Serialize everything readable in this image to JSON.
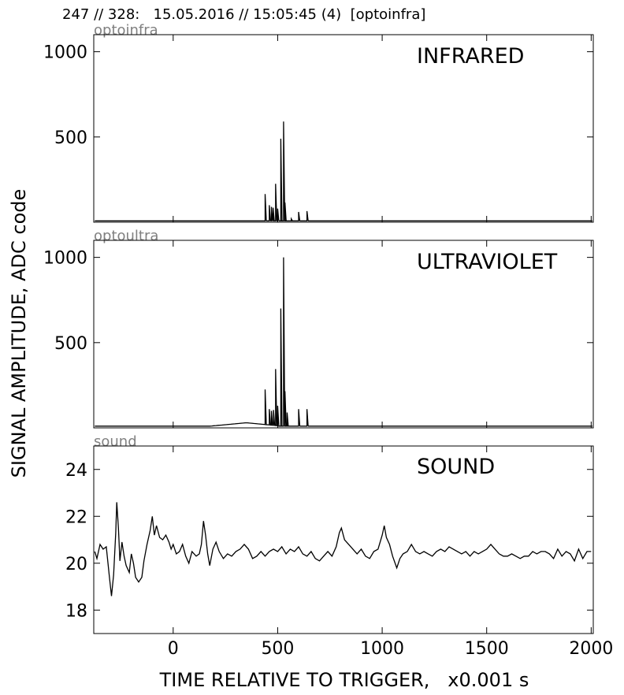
{
  "header": "247 // 328:   15.05.2016 // 15:05:45 (4)  [optoinfra]",
  "ylabel": "SIGNAL AMPLITUDE,  ADC code",
  "xlabel": "TIME RELATIVE TO TRIGGER,   x0.001 s",
  "chart_data": [
    {
      "type": "line",
      "title": "optoinfra",
      "label": "INFRARED",
      "xlim": [
        -380,
        2010
      ],
      "ylim": [
        0,
        1100
      ],
      "yticks": [
        500,
        1000
      ],
      "baseline": 8,
      "spikes": [
        [
          440,
          165
        ],
        [
          460,
          100
        ],
        [
          470,
          90
        ],
        [
          478,
          85
        ],
        [
          490,
          225
        ],
        [
          500,
          80
        ],
        [
          515,
          490
        ],
        [
          528,
          590
        ],
        [
          535,
          115
        ],
        [
          565,
          20
        ],
        [
          600,
          60
        ],
        [
          640,
          65
        ]
      ]
    },
    {
      "type": "line",
      "title": "optoultra",
      "label": "ULTRAVIOLET",
      "xlim": [
        -380,
        2010
      ],
      "ylim": [
        0,
        1100
      ],
      "yticks": [
        500,
        1000
      ],
      "baseline": 10,
      "bump": {
        "x": [
          150,
          500
        ],
        "peak": 30,
        "center": 350
      },
      "spikes": [
        [
          440,
          225
        ],
        [
          460,
          110
        ],
        [
          470,
          100
        ],
        [
          480,
          105
        ],
        [
          490,
          345
        ],
        [
          500,
          130
        ],
        [
          515,
          700
        ],
        [
          528,
          1000
        ],
        [
          535,
          215
        ],
        [
          545,
          90
        ],
        [
          600,
          110
        ],
        [
          640,
          110
        ]
      ]
    },
    {
      "type": "line",
      "title": "sound",
      "label": "SOUND",
      "xlim": [
        -380,
        2010
      ],
      "ylim": [
        17,
        25
      ],
      "yticks": [
        18,
        20,
        22,
        24
      ],
      "xticks": [
        0,
        500,
        1000,
        1500,
        2000
      ],
      "points": [
        [
          -375,
          20.5
        ],
        [
          -365,
          20.2
        ],
        [
          -350,
          20.8
        ],
        [
          -335,
          20.6
        ],
        [
          -320,
          20.7
        ],
        [
          -305,
          19.4
        ],
        [
          -295,
          18.6
        ],
        [
          -285,
          19.5
        ],
        [
          -275,
          21.3
        ],
        [
          -270,
          22.6
        ],
        [
          -262,
          21.5
        ],
        [
          -255,
          20.1
        ],
        [
          -245,
          20.9
        ],
        [
          -235,
          20.3
        ],
        [
          -225,
          19.9
        ],
        [
          -210,
          19.6
        ],
        [
          -200,
          20.4
        ],
        [
          -190,
          20.0
        ],
        [
          -180,
          19.4
        ],
        [
          -165,
          19.2
        ],
        [
          -150,
          19.4
        ],
        [
          -140,
          20.1
        ],
        [
          -125,
          20.8
        ],
        [
          -110,
          21.4
        ],
        [
          -100,
          22.0
        ],
        [
          -90,
          21.2
        ],
        [
          -80,
          21.6
        ],
        [
          -65,
          21.1
        ],
        [
          -50,
          21.0
        ],
        [
          -35,
          21.2
        ],
        [
          -20,
          20.9
        ],
        [
          -10,
          20.6
        ],
        [
          0,
          20.8
        ],
        [
          15,
          20.4
        ],
        [
          30,
          20.5
        ],
        [
          45,
          20.8
        ],
        [
          60,
          20.3
        ],
        [
          75,
          20.0
        ],
        [
          90,
          20.5
        ],
        [
          110,
          20.3
        ],
        [
          125,
          20.4
        ],
        [
          135,
          20.8
        ],
        [
          145,
          21.8
        ],
        [
          155,
          21.2
        ],
        [
          165,
          20.4
        ],
        [
          175,
          19.9
        ],
        [
          190,
          20.6
        ],
        [
          205,
          20.9
        ],
        [
          220,
          20.5
        ],
        [
          240,
          20.2
        ],
        [
          260,
          20.4
        ],
        [
          280,
          20.3
        ],
        [
          300,
          20.5
        ],
        [
          320,
          20.6
        ],
        [
          340,
          20.8
        ],
        [
          360,
          20.6
        ],
        [
          380,
          20.2
        ],
        [
          400,
          20.3
        ],
        [
          420,
          20.5
        ],
        [
          440,
          20.3
        ],
        [
          460,
          20.5
        ],
        [
          480,
          20.6
        ],
        [
          500,
          20.5
        ],
        [
          520,
          20.7
        ],
        [
          540,
          20.4
        ],
        [
          560,
          20.6
        ],
        [
          580,
          20.5
        ],
        [
          600,
          20.7
        ],
        [
          620,
          20.4
        ],
        [
          640,
          20.3
        ],
        [
          660,
          20.5
        ],
        [
          680,
          20.2
        ],
        [
          700,
          20.1
        ],
        [
          720,
          20.3
        ],
        [
          740,
          20.5
        ],
        [
          760,
          20.3
        ],
        [
          780,
          20.7
        ],
        [
          795,
          21.3
        ],
        [
          805,
          21.5
        ],
        [
          820,
          21.0
        ],
        [
          840,
          20.8
        ],
        [
          860,
          20.6
        ],
        [
          880,
          20.4
        ],
        [
          900,
          20.6
        ],
        [
          920,
          20.3
        ],
        [
          940,
          20.2
        ],
        [
          960,
          20.5
        ],
        [
          980,
          20.6
        ],
        [
          1000,
          21.2
        ],
        [
          1010,
          21.6
        ],
        [
          1020,
          21.1
        ],
        [
          1035,
          20.8
        ],
        [
          1050,
          20.3
        ],
        [
          1070,
          19.8
        ],
        [
          1085,
          20.2
        ],
        [
          1100,
          20.4
        ],
        [
          1120,
          20.5
        ],
        [
          1140,
          20.8
        ],
        [
          1160,
          20.5
        ],
        [
          1180,
          20.4
        ],
        [
          1200,
          20.5
        ],
        [
          1220,
          20.4
        ],
        [
          1240,
          20.3
        ],
        [
          1260,
          20.5
        ],
        [
          1280,
          20.6
        ],
        [
          1300,
          20.5
        ],
        [
          1320,
          20.7
        ],
        [
          1340,
          20.6
        ],
        [
          1360,
          20.5
        ],
        [
          1380,
          20.4
        ],
        [
          1400,
          20.5
        ],
        [
          1420,
          20.3
        ],
        [
          1440,
          20.5
        ],
        [
          1460,
          20.4
        ],
        [
          1480,
          20.5
        ],
        [
          1500,
          20.6
        ],
        [
          1520,
          20.8
        ],
        [
          1540,
          20.6
        ],
        [
          1560,
          20.4
        ],
        [
          1580,
          20.3
        ],
        [
          1600,
          20.3
        ],
        [
          1620,
          20.4
        ],
        [
          1640,
          20.3
        ],
        [
          1660,
          20.2
        ],
        [
          1680,
          20.3
        ],
        [
          1700,
          20.3
        ],
        [
          1720,
          20.5
        ],
        [
          1740,
          20.4
        ],
        [
          1760,
          20.5
        ],
        [
          1780,
          20.5
        ],
        [
          1800,
          20.4
        ],
        [
          1820,
          20.2
        ],
        [
          1840,
          20.6
        ],
        [
          1860,
          20.3
        ],
        [
          1880,
          20.5
        ],
        [
          1900,
          20.4
        ],
        [
          1920,
          20.1
        ],
        [
          1940,
          20.6
        ],
        [
          1960,
          20.2
        ],
        [
          1980,
          20.5
        ],
        [
          2000,
          20.5
        ]
      ]
    }
  ]
}
